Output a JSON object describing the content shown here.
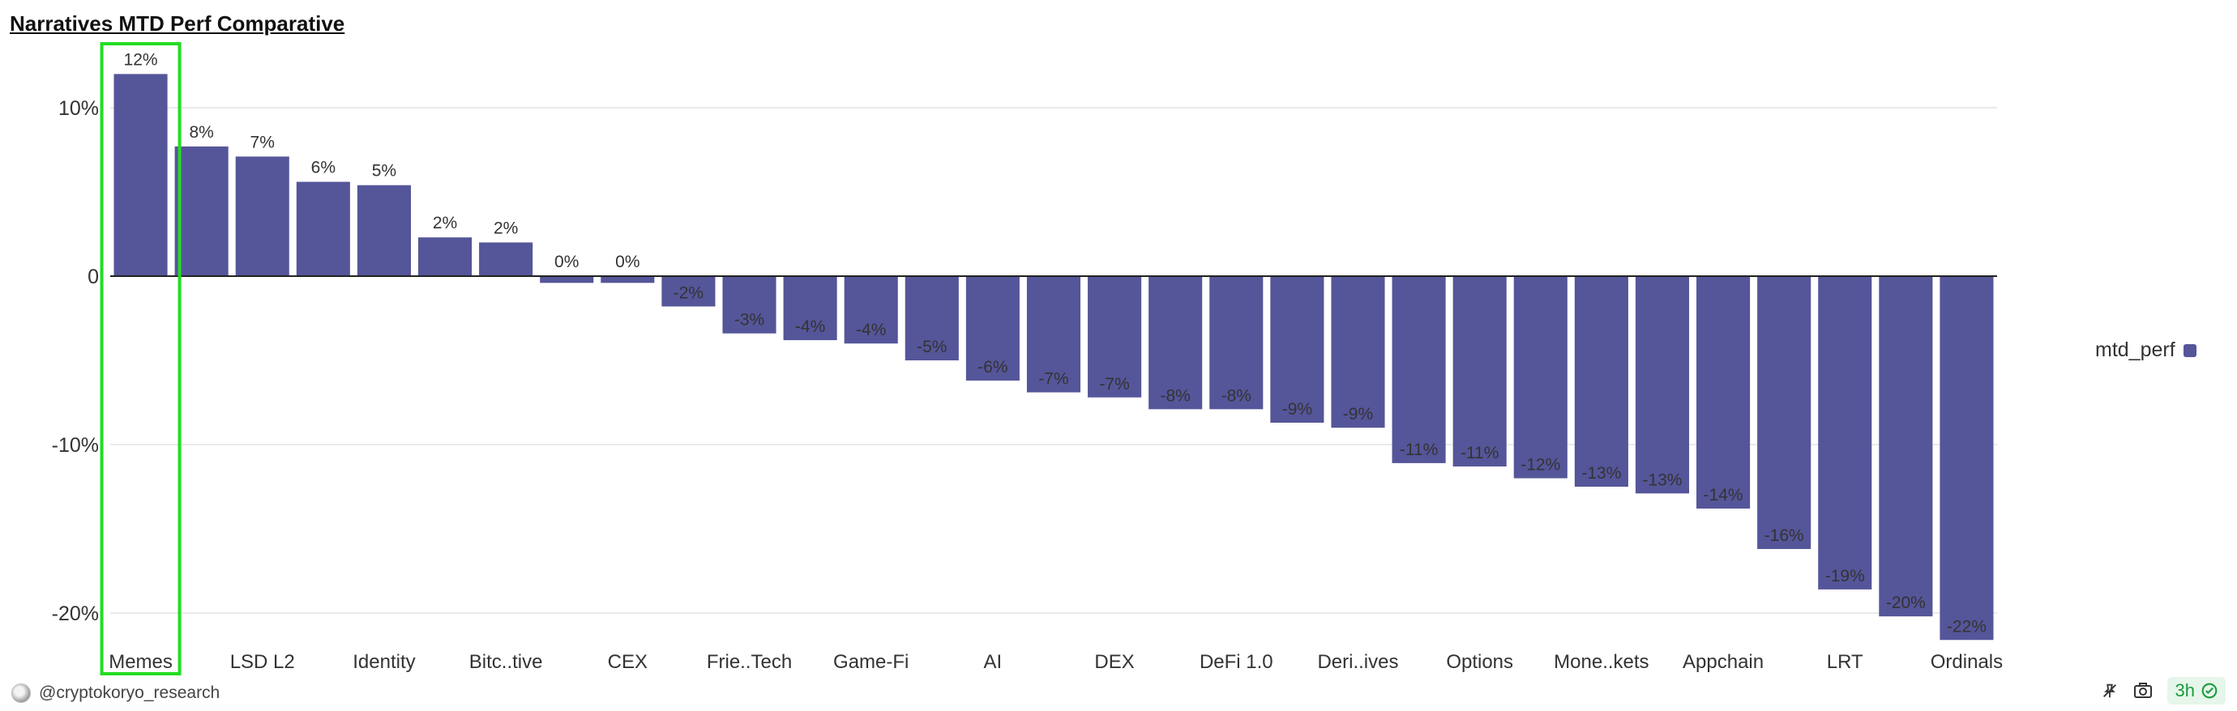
{
  "title": "Narratives MTD Perf Comparative",
  "legend_label": "mtd_perf",
  "footer": {
    "attribution": "@cryptokoryo_research"
  },
  "toolbar": {
    "refresh_label": "3h"
  },
  "colors": {
    "bar": "#55559a",
    "highlight": "#22dd22",
    "grid": "#e4e4e4",
    "axis": "#222222"
  },
  "chart_data": {
    "type": "bar",
    "series": [
      {
        "name": "mtd_perf"
      }
    ],
    "categories": [
      "Memes",
      "",
      "LSD L2",
      "",
      "Identity",
      "",
      "Bitc..tive",
      "",
      "CEX",
      "",
      "Frie..Tech",
      "",
      "Game-Fi",
      "",
      "AI",
      "",
      "DEX",
      "",
      "DeFi 1.0",
      "",
      "Deri..ives",
      "",
      "Options",
      "",
      "Mone..kets",
      "",
      "Appchain",
      "",
      "LRT",
      "",
      "Ordinals"
    ],
    "values": [
      12,
      7.7,
      7.1,
      5.6,
      5.4,
      2.3,
      2.0,
      -0.4,
      -0.4,
      -1.8,
      -3.4,
      -3.8,
      -4.0,
      -5.0,
      -6.2,
      -6.9,
      -7.2,
      -7.9,
      -7.9,
      -8.7,
      -9.0,
      -11.1,
      -11.3,
      -12.0,
      -12.5,
      -12.9,
      -13.8,
      -16.2,
      -18.6,
      -20.2,
      -21.6
    ],
    "data_labels": [
      "12%",
      "8%",
      "7%",
      "6%",
      "5%",
      "2%",
      "2%",
      "0%",
      "0%",
      "-2%",
      "-3%",
      "-4%",
      "-4%",
      "-5%",
      "-6%",
      "-7%",
      "-7%",
      "-8%",
      "-8%",
      "-9%",
      "-9%",
      "-11%",
      "-11%",
      "-12%",
      "-13%",
      "-13%",
      "-14%",
      "-16%",
      "-19%",
      "-20%",
      "-22%"
    ],
    "y_ticks": [
      {
        "value": 10,
        "label": "10%"
      },
      {
        "value": 0,
        "label": "0"
      },
      {
        "value": -10,
        "label": "-10%"
      },
      {
        "value": -20,
        "label": "-20%"
      }
    ],
    "ylim": [
      -22,
      12
    ],
    "highlighted_category": "Memes",
    "grid": true,
    "legend_position": "right"
  }
}
